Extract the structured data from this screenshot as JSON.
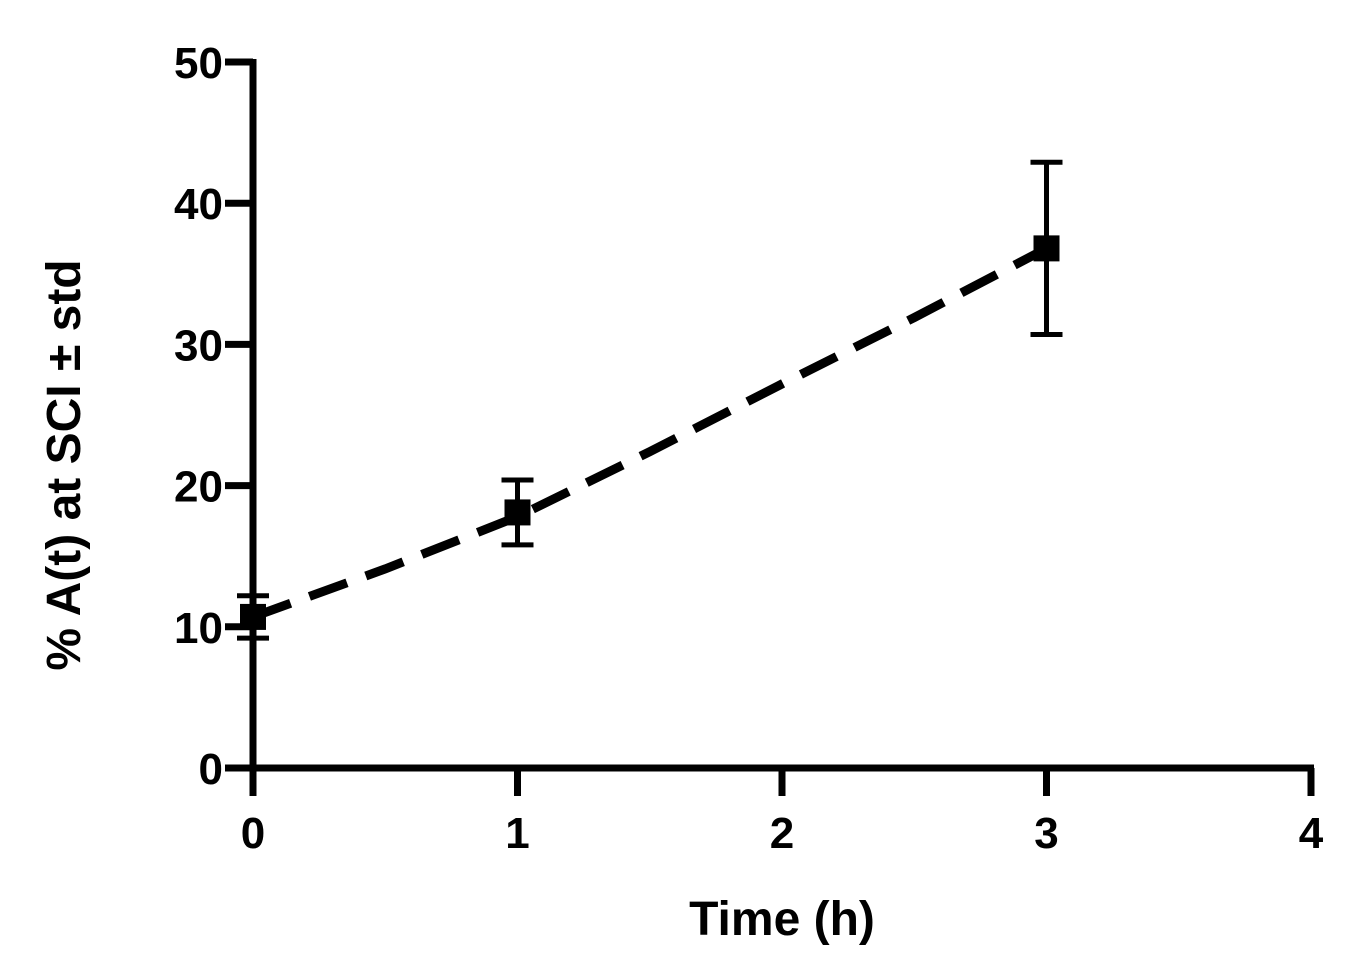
{
  "chart_data": {
    "type": "scatter",
    "title": "",
    "xlabel": "Time (h)",
    "ylabel": "% A(t) at SCI ± std",
    "xlim": [
      0,
      4
    ],
    "ylim": [
      0,
      50
    ],
    "x_ticks": [
      "0",
      "1",
      "2",
      "3",
      "4"
    ],
    "y_ticks": [
      "0",
      "10",
      "20",
      "30",
      "40",
      "50"
    ],
    "grid": false,
    "legend": "none",
    "series": [
      {
        "marker": "square",
        "color": "#000000",
        "points": [
          {
            "x": 0,
            "y": 10.7,
            "err": 1.5
          },
          {
            "x": 1,
            "y": 18.1,
            "err": 2.3
          },
          {
            "x": 3,
            "y": 36.8,
            "err": 6.1
          }
        ]
      }
    ],
    "fit_line": {
      "style": "dashed",
      "color": "#000000",
      "x": [
        0,
        0.5,
        1,
        1.5,
        2,
        2.5,
        3
      ],
      "y": [
        10.7,
        14.1,
        17.8,
        22.4,
        27.2,
        31.9,
        36.8
      ]
    }
  }
}
